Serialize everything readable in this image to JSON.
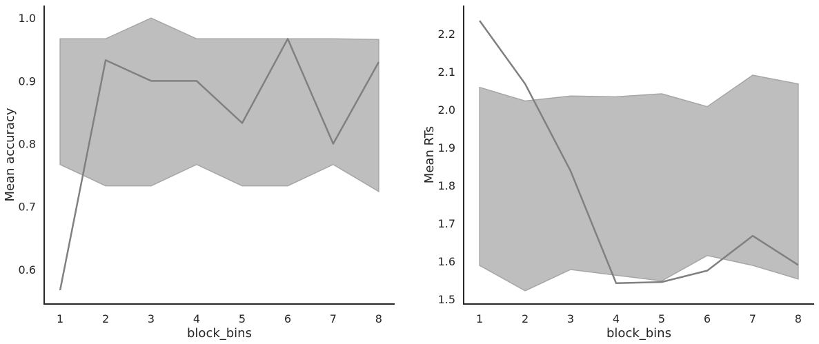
{
  "chart_data": [
    {
      "type": "line",
      "xlabel": "block_bins",
      "ylabel": "Mean accuracy",
      "x": [
        1,
        2,
        3,
        4,
        5,
        6,
        7,
        8
      ],
      "xticks": [
        "1",
        "2",
        "3",
        "4",
        "5",
        "6",
        "7",
        "8"
      ],
      "xlim": [
        0.65,
        8.35
      ],
      "ylim": [
        0.545,
        1.02
      ],
      "yticks": [
        0.6,
        0.7,
        0.8,
        0.9,
        1.0
      ],
      "ytick_labels": [
        "0.6",
        "0.7",
        "0.8",
        "0.9",
        "1.0"
      ],
      "series": [
        {
          "values": [
            0.567,
            0.933,
            0.9,
            0.9,
            0.833,
            0.967,
            0.8,
            0.93
          ],
          "ci_lower": [
            0.767,
            0.733,
            0.733,
            0.767,
            0.733,
            0.733,
            0.767,
            0.724
          ],
          "ci_upper": [
            0.967,
            0.967,
            1.0,
            0.967,
            0.967,
            0.967,
            0.967,
            0.966
          ]
        }
      ],
      "line_color": "#808080",
      "band_color": "#bebebe",
      "grid": false
    },
    {
      "type": "line",
      "xlabel": "block_bins",
      "ylabel": "Mean RTs",
      "x": [
        1,
        2,
        3,
        4,
        5,
        6,
        7,
        8
      ],
      "xticks": [
        "1",
        "2",
        "3",
        "4",
        "5",
        "6",
        "7",
        "8"
      ],
      "xlim": [
        0.65,
        8.35
      ],
      "ylim": [
        1.487,
        2.275
      ],
      "yticks": [
        1.5,
        1.6,
        1.7,
        1.8,
        1.9,
        2.0,
        2.1,
        2.2
      ],
      "ytick_labels": [
        "1.5",
        "1.6",
        "1.7",
        "1.8",
        "1.9",
        "2.0",
        "2.1",
        "2.2"
      ],
      "series": [
        {
          "values": [
            2.235,
            2.068,
            1.838,
            1.542,
            1.545,
            1.575,
            1.667,
            1.59
          ],
          "ci_lower": [
            1.589,
            1.522,
            1.578,
            1.563,
            1.548,
            1.615,
            1.589,
            1.553
          ],
          "ci_upper": [
            2.059,
            2.023,
            2.036,
            2.034,
            2.042,
            2.008,
            2.091,
            2.068
          ]
        }
      ],
      "line_color": "#808080",
      "band_color": "#bebebe",
      "grid": false
    }
  ]
}
